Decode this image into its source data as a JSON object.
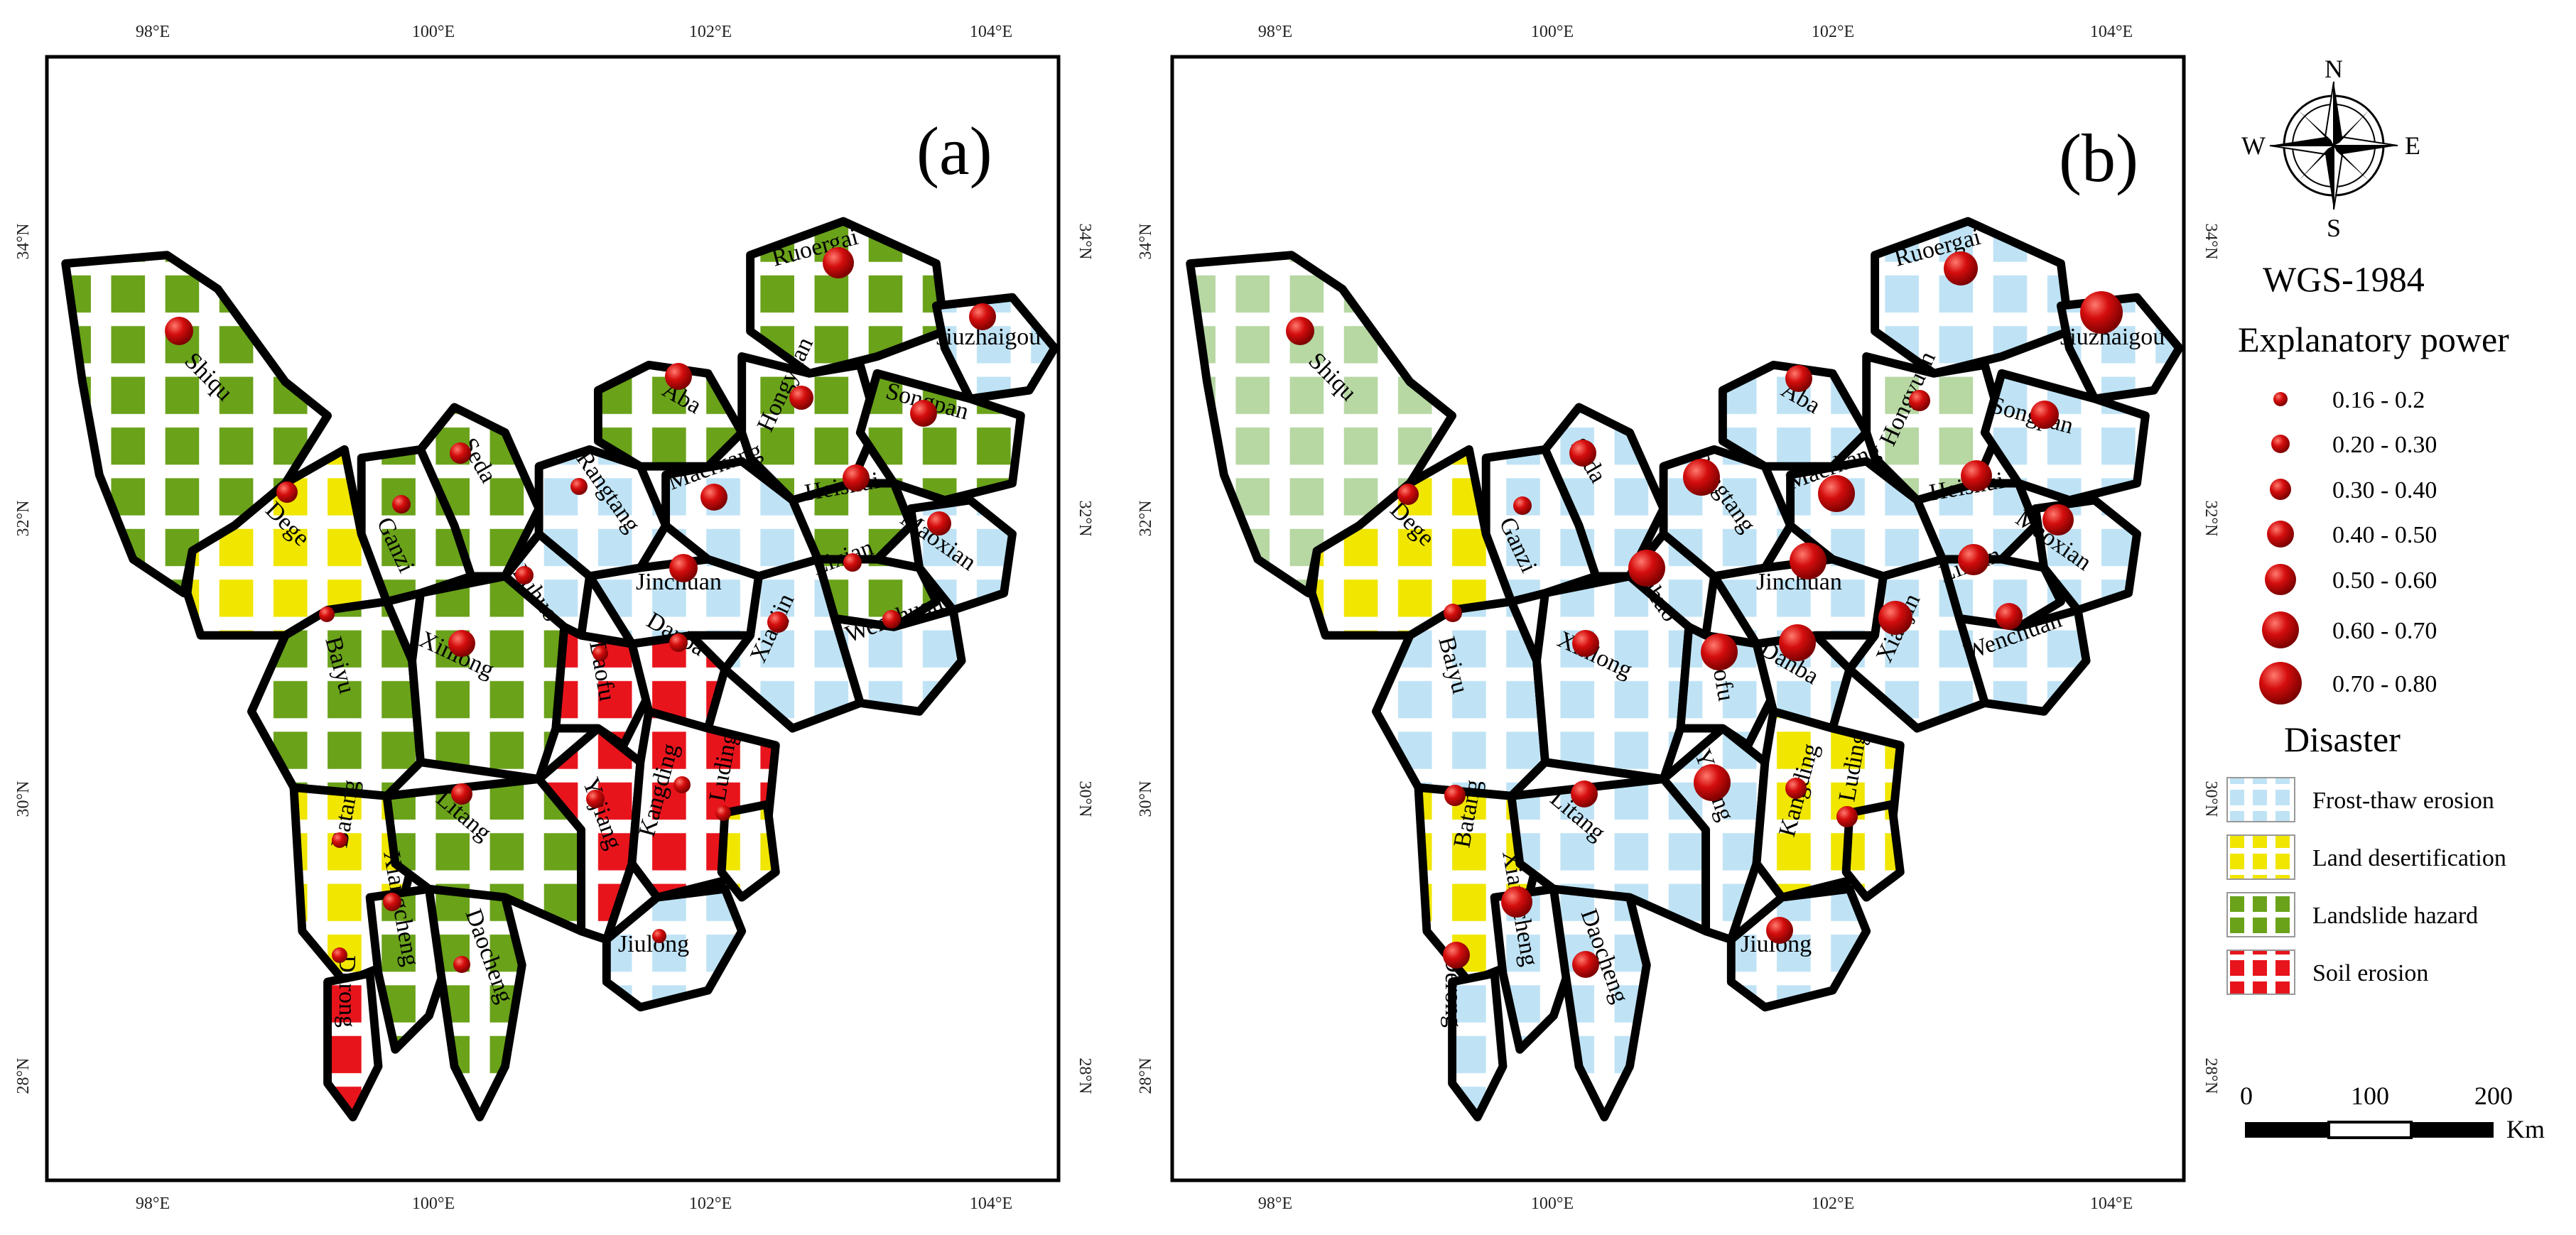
{
  "panels": [
    {
      "label": "(a)"
    },
    {
      "label": "(b)"
    }
  ],
  "lon_ticks": [
    "98°E",
    "100°E",
    "102°E",
    "104°E"
  ],
  "lat_ticks": [
    "34°N",
    "32°N",
    "30°N",
    "28°N"
  ],
  "counties": [
    "Shiqu",
    "Dege",
    "Baiyu",
    "Batang",
    "Derong",
    "Xiangcheng",
    "Daocheng",
    "Litang",
    "Yajiang",
    "Xinlong",
    "Ganzi",
    "Seda",
    "Luhuo",
    "Daofu",
    "Danba",
    "Kangding",
    "Luding",
    "Jiulong",
    "Rangtang",
    "Aba",
    "Ruoergai",
    "Hongyuan",
    "Jiuzhaigou",
    "Songpan",
    "Heishui",
    "Maoxian",
    "Lixian",
    "Wenchuan",
    "Maerkang",
    "Jinchuan",
    "Xiaojin"
  ],
  "legend": {
    "crs": "WGS-1984",
    "power_title": "Explanatory power",
    "power_classes": [
      "0.16 - 0.2",
      "0.20 - 0.30",
      "0.30 - 0.40",
      "0.40 - 0.50",
      "0.50 - 0.60",
      "0.60 - 0.70",
      "0.70 - 0.80"
    ],
    "disaster_title": "Disaster",
    "disasters": [
      {
        "name": "Frost-thaw erosion",
        "color": "#bfe3f5"
      },
      {
        "name": "Land desertification",
        "color": "#f0e600"
      },
      {
        "name": "Landslide hazard",
        "color": "#6aa21a"
      },
      {
        "name": "Soil erosion",
        "color": "#e8141c"
      }
    ]
  },
  "compass": {
    "n": "N",
    "s": "S",
    "e": "E",
    "w": "W"
  },
  "scale": {
    "labels": [
      "0",
      "100",
      "200"
    ],
    "unit": "Km"
  }
}
